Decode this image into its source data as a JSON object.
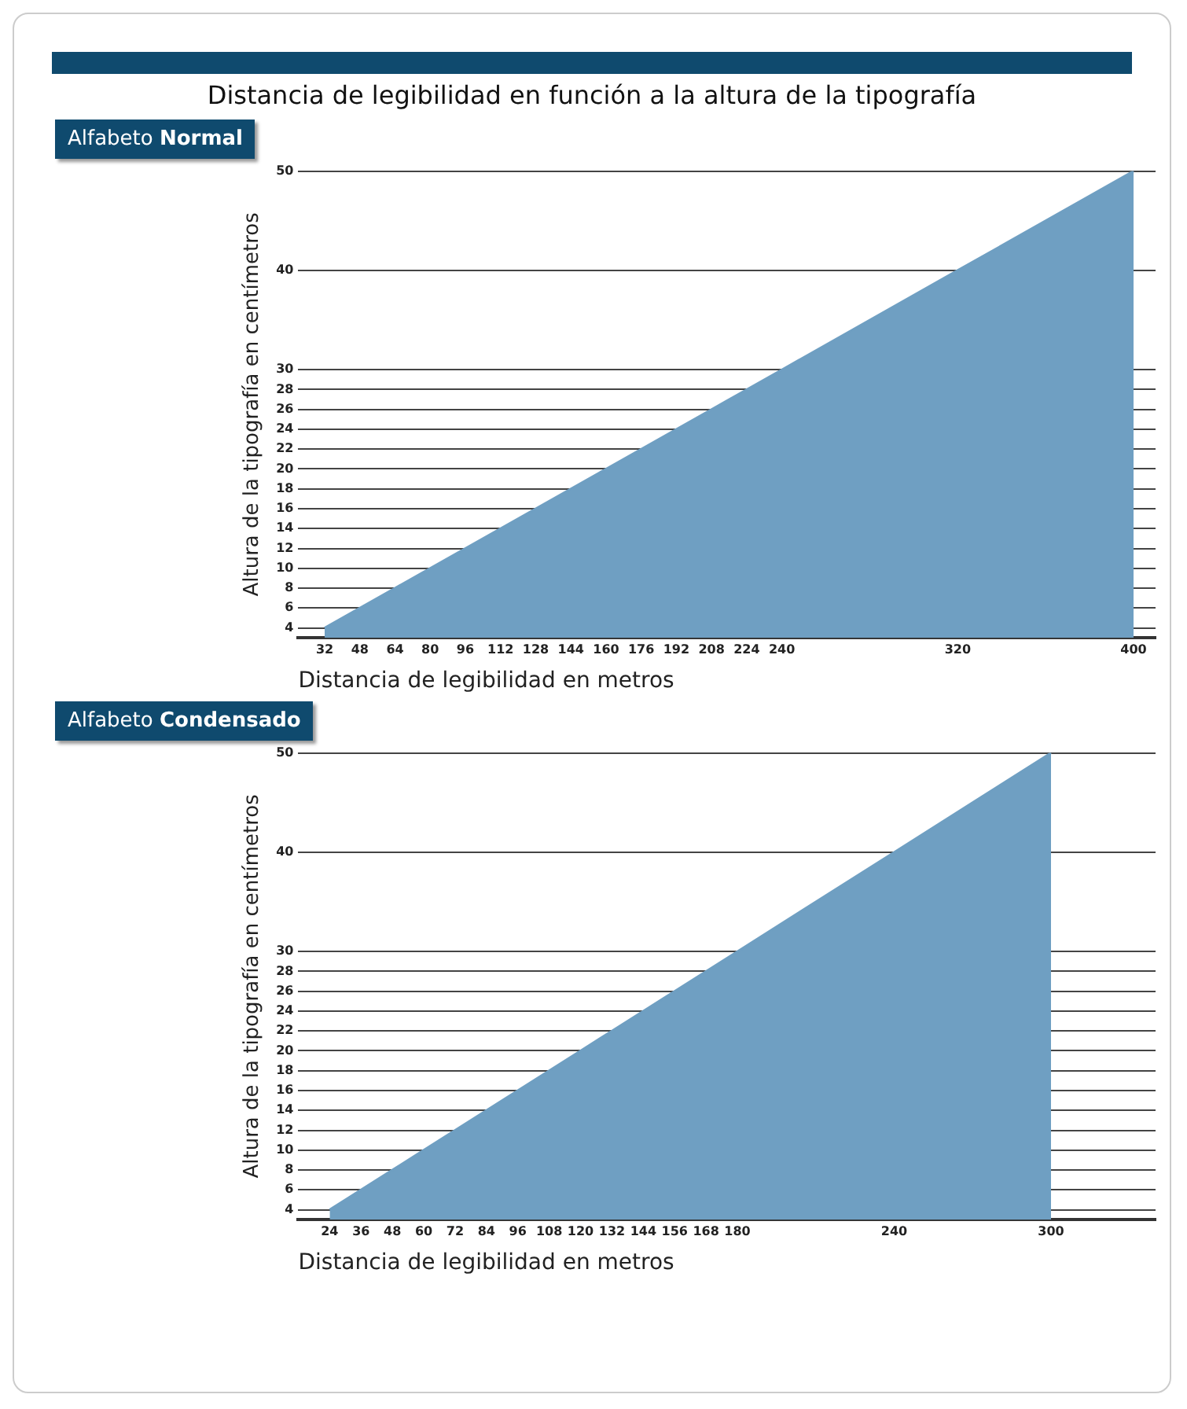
{
  "chart_data": [
    {
      "type": "area",
      "title": "Distancia de legibilidad en función a la altura de la tipografía",
      "subtitle": "Alfabeto Normal",
      "xlabel": "Distancia de legibilidad en metros",
      "ylabel": "Altura de la tipografía en centímetros",
      "x": [
        32,
        48,
        64,
        80,
        96,
        112,
        128,
        144,
        160,
        176,
        192,
        208,
        224,
        240,
        320,
        400
      ],
      "series": [
        {
          "color": "#6f9fc2",
          "values": [
            4,
            6,
            8,
            10,
            12,
            14,
            16,
            18,
            20,
            22,
            24,
            26,
            28,
            30,
            40,
            50
          ]
        }
      ],
      "xlim": [
        20,
        410
      ],
      "xticks": [
        32,
        48,
        64,
        80,
        96,
        112,
        128,
        144,
        160,
        176,
        192,
        208,
        224,
        240,
        320,
        400
      ],
      "ylim": [
        3,
        50
      ],
      "yticks": [
        4,
        6,
        8,
        10,
        12,
        14,
        16,
        18,
        20,
        22,
        24,
        26,
        28,
        30,
        40,
        50
      ],
      "grid": "y",
      "legend": false
    },
    {
      "type": "area",
      "subtitle": "Alfabeto Condensado",
      "xlabel": "Distancia de legibilidad en metros",
      "ylabel": "Altura de la tipografía en centímetros",
      "x": [
        24,
        36,
        48,
        60,
        72,
        84,
        96,
        108,
        120,
        132,
        144,
        156,
        168,
        180,
        240,
        300
      ],
      "series": [
        {
          "color": "#6f9fc2",
          "values": [
            4,
            6,
            8,
            10,
            12,
            14,
            16,
            18,
            20,
            22,
            24,
            26,
            28,
            30,
            40,
            50
          ]
        }
      ],
      "xlim": [
        12,
        340
      ],
      "xticks": [
        24,
        36,
        48,
        60,
        72,
        84,
        96,
        108,
        120,
        132,
        144,
        156,
        168,
        180,
        240,
        300
      ],
      "ylim": [
        3,
        50
      ],
      "yticks": [
        4,
        6,
        8,
        10,
        12,
        14,
        16,
        18,
        20,
        22,
        24,
        26,
        28,
        30,
        40,
        50
      ],
      "grid": "y",
      "legend": false
    }
  ]
}
